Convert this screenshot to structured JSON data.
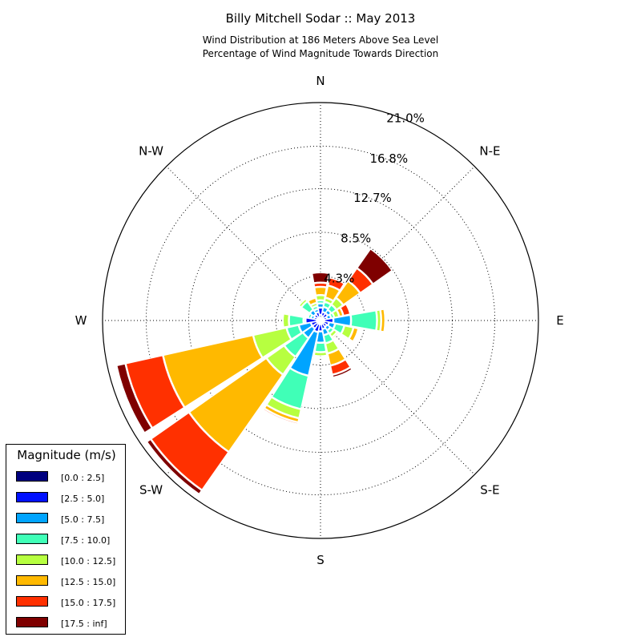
{
  "chart_data": {
    "type": "windrose",
    "title": "Billy Mitchell Sodar :: May 2013",
    "subtitle_lines": [
      "Wind Distribution at 186 Meters Above Sea Level",
      "Percentage of Wind Magnitude Towards Direction"
    ],
    "direction_labels": [
      "N",
      "N-E",
      "E",
      "S-E",
      "S",
      "S-W",
      "W",
      "N-W"
    ],
    "radial_ticks": [
      4.3,
      8.5,
      12.7,
      16.8,
      21.0
    ],
    "radial_tick_labels": [
      "4.3%",
      "8.5%",
      "12.7%",
      "16.8%",
      "21.0%"
    ],
    "rmax": 21.0,
    "grid": true,
    "legend": {
      "title": "Magnitude (m/s)",
      "placement": "lower-left",
      "bins": [
        {
          "label": "[0.0 : 2.5]",
          "color": "#00007f"
        },
        {
          "label": "[2.5 : 5.0]",
          "color": "#0010ff"
        },
        {
          "label": "[5.0 : 7.5]",
          "color": "#00a4ff"
        },
        {
          "label": "[7.5 : 10.0]",
          "color": "#40ffb7"
        },
        {
          "label": "[10.0 : 12.5]",
          "color": "#b7ff40"
        },
        {
          "label": "[12.5 : 15.0]",
          "color": "#ffb900"
        },
        {
          "label": "[15.0 : 17.5]",
          "color": "#ff3000"
        },
        {
          "label": "[17.5 : inf]",
          "color": "#7f0000"
        }
      ]
    },
    "sectors": [
      {
        "dir_deg": 0.0,
        "cumulative_pct": [
          0.5,
          1.2,
          1.6,
          1.9,
          2.4,
          3.2,
          3.6,
          4.6
        ]
      },
      {
        "dir_deg": 22.5,
        "cumulative_pct": [
          0.4,
          0.8,
          1.3,
          1.8,
          2.2,
          3.4,
          4.2,
          4.2
        ]
      },
      {
        "dir_deg": 45.0,
        "cumulative_pct": [
          0.3,
          0.8,
          1.2,
          1.8,
          2.6,
          4.6,
          6.1,
          8.4
        ]
      },
      {
        "dir_deg": 67.5,
        "cumulative_pct": [
          0.3,
          0.6,
          1.0,
          1.3,
          1.8,
          2.2,
          2.9,
          2.9
        ]
      },
      {
        "dir_deg": 90.0,
        "cumulative_pct": [
          0.3,
          1.2,
          2.9,
          5.4,
          5.8,
          6.2,
          6.2,
          6.2
        ]
      },
      {
        "dir_deg": 112.5,
        "cumulative_pct": [
          0.3,
          0.8,
          1.4,
          2.3,
          3.2,
          3.7,
          3.7,
          3.7
        ]
      },
      {
        "dir_deg": 135.0,
        "cumulative_pct": [
          0.3,
          0.7,
          1.1,
          1.5,
          1.9,
          2.1,
          2.1,
          2.1
        ]
      },
      {
        "dir_deg": 157.5,
        "cumulative_pct": [
          0.3,
          0.8,
          1.4,
          2.2,
          3.2,
          4.4,
          5.3,
          5.6
        ]
      },
      {
        "dir_deg": 180.0,
        "cumulative_pct": [
          0.3,
          1.0,
          2.1,
          3.0,
          3.4,
          3.4,
          3.4,
          3.4
        ]
      },
      {
        "dir_deg": 202.5,
        "cumulative_pct": [
          0.3,
          1.1,
          5.4,
          8.7,
          9.6,
          10.0,
          10.2,
          10.2
        ]
      },
      {
        "dir_deg": 225.0,
        "cumulative_pct": [
          0.3,
          0.9,
          2.0,
          4.2,
          6.3,
          15.4,
          19.9,
          20.4
        ]
      },
      {
        "dir_deg": 247.5,
        "cumulative_pct": [
          0.3,
          0.9,
          2.1,
          3.3,
          6.6,
          15.5,
          19.2,
          20.1
        ]
      },
      {
        "dir_deg": 270.0,
        "cumulative_pct": [
          0.3,
          1.4,
          1.6,
          3.0,
          3.6,
          3.6,
          3.6,
          3.6
        ]
      },
      {
        "dir_deg": 292.5,
        "cumulative_pct": [
          0.3,
          0.6,
          0.9,
          1.2,
          1.3,
          1.3,
          1.3,
          1.3
        ]
      },
      {
        "dir_deg": 315.0,
        "cumulative_pct": [
          0.3,
          0.7,
          1.2,
          2.2,
          2.5,
          2.5,
          2.5,
          2.5
        ]
      },
      {
        "dir_deg": 337.5,
        "cumulative_pct": [
          0.3,
          0.8,
          1.1,
          1.4,
          1.7,
          2.2,
          2.2,
          2.2
        ]
      }
    ]
  }
}
